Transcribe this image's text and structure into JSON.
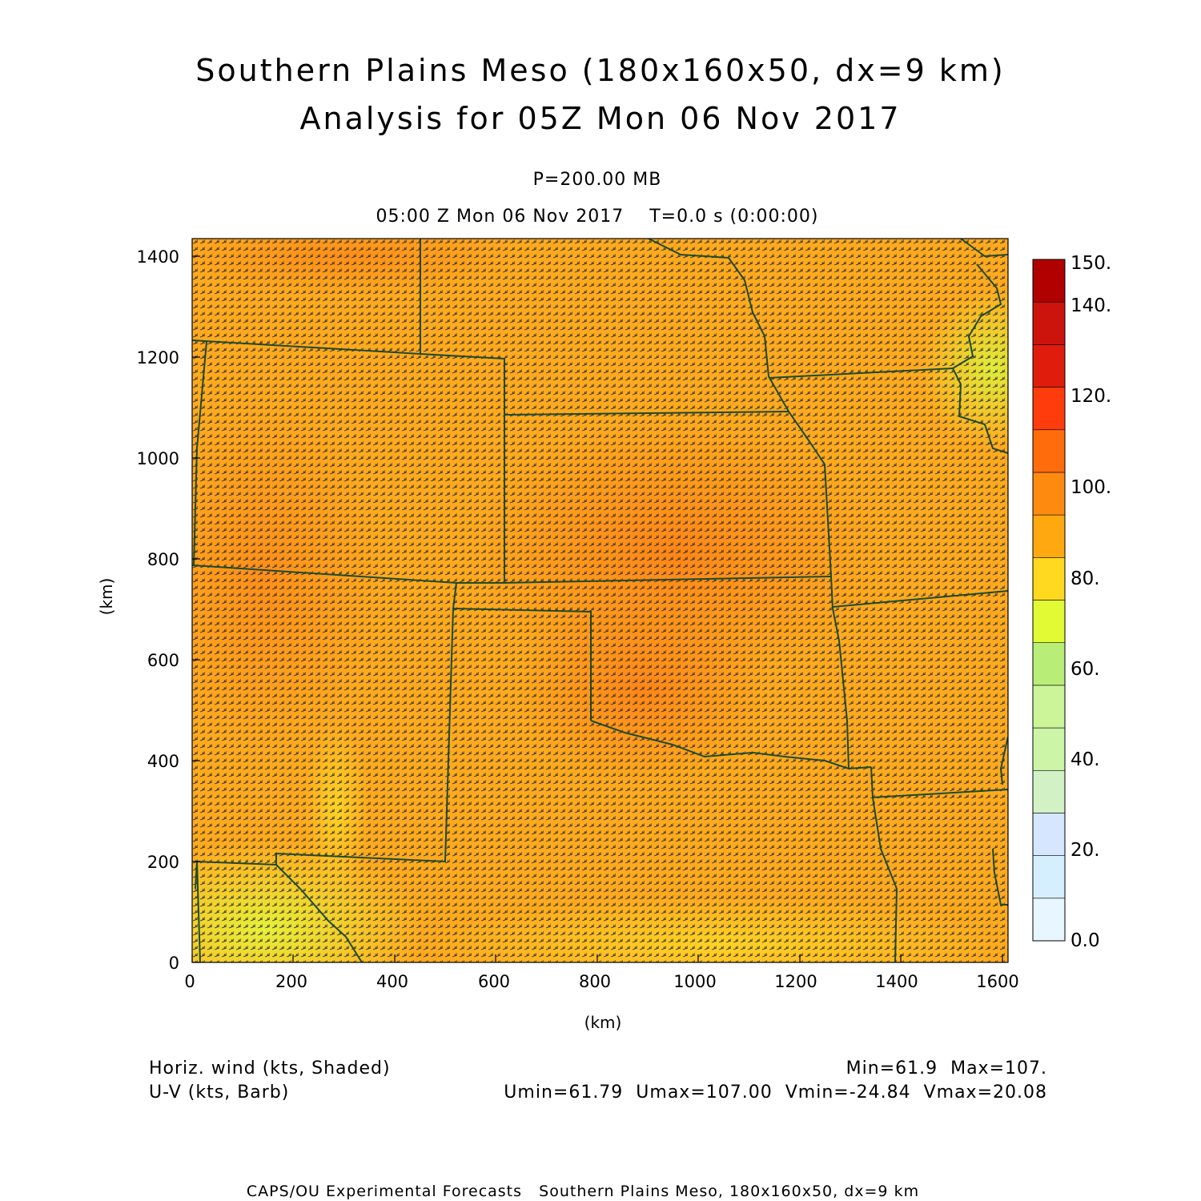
{
  "title_line1": "Southern Plains Meso (180x160x50, dx=9 km)",
  "title_line2": "Analysis for 05Z Mon 06 Nov 2017",
  "level_label": "P=200.00 MB",
  "time_label": "05:00 Z Mon 06 Nov 2017    T=0.0 s (0:00:00)",
  "x_axis_label": "(km)",
  "y_axis_label": "(km)",
  "x_ticks": [
    "0",
    "200",
    "400",
    "600",
    "800",
    "1000",
    "1200",
    "1400",
    "1600"
  ],
  "y_ticks": [
    "0",
    "200",
    "400",
    "600",
    "800",
    "1000",
    "1200",
    "1400"
  ],
  "colorbar": {
    "labels": [
      "0.0",
      "20.",
      "40.",
      "60.",
      "80.",
      "100.",
      "120.",
      "140.",
      "150."
    ],
    "colors": [
      "#e8f7ff",
      "#d6efff",
      "#d6e6ff",
      "#d2f2c6",
      "#ccf5a8",
      "#ccf59a",
      "#b8ee78",
      "#e2fa34",
      "#ffd820",
      "#ffa810",
      "#ff8a10",
      "#ff6c0c",
      "#ff3c0c",
      "#e01c0c",
      "#cc140c",
      "#b00000"
    ]
  },
  "footer": {
    "left_line1": "Horiz. wind (kts, Shaded)",
    "left_line2": "U-V (kts, Barb)",
    "right_line1": "Min=61.9  Max=107.",
    "right_line2": "Umin=61.79  Umax=107.00  Vmin=-24.84  Vmax=20.08"
  },
  "credit": "CAPS/OU Experimental Forecasts   Southern Plains Meso, 180x160x50, dx=9 km"
}
